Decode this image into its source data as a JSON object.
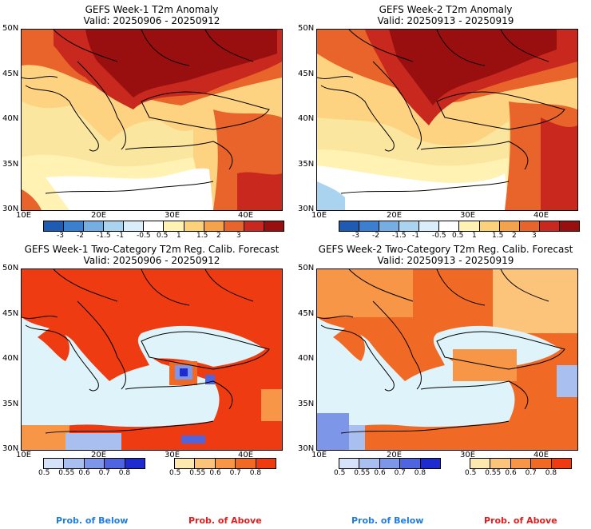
{
  "panels": [
    {
      "title": "GEFS Week-1 T2m Anomaly",
      "valid": "Valid: 20250906 - 20250912"
    },
    {
      "title": "GEFS Week-2 T2m Anomaly",
      "valid": "Valid: 20250913 - 20250919"
    },
    {
      "title": "GEFS Week-1 Two-Category T2m Reg. Calib. Forecast",
      "valid": "Valid: 20250906 - 20250912"
    },
    {
      "title": "GEFS Week-2 Two-Category T2m Reg. Calib. Forecast",
      "valid": "Valid: 20250913 - 20250919"
    }
  ],
  "lat_labels": [
    "50N",
    "45N",
    "40N",
    "35N",
    "30N"
  ],
  "lon_labels": [
    "10E",
    "20E",
    "30E",
    "40E"
  ],
  "anomaly_ticks": [
    "-3",
    "-2",
    "-1.5",
    "-1",
    "-0.5",
    "0.5",
    "1",
    "1.5",
    "2",
    "3"
  ],
  "anomaly_colors": [
    "#1e5bb5",
    "#3a7fd0",
    "#74aee3",
    "#a9d3ef",
    "#d9eefa",
    "#ffffff",
    "#fff2b2",
    "#fbd27a",
    "#f5a34a",
    "#e8642a",
    "#c8281e",
    "#990f0f"
  ],
  "prob_ticks": [
    "0.5",
    "0.55",
    "0.6",
    "0.7",
    "0.8"
  ],
  "prob_below_colors": [
    "#d6e2fa",
    "#a9bff0",
    "#7e96e8",
    "#4f65df",
    "#1d2bd0"
  ],
  "prob_above_colors": [
    "#fde8b0",
    "#fbc47a",
    "#f69646",
    "#f06a26",
    "#ee3b12"
  ],
  "labels": {
    "below": "Prob. of Below",
    "above": "Prob. of Above"
  },
  "colors": {
    "below_text": "#1f7de0",
    "above_text": "#e31c1c"
  }
}
